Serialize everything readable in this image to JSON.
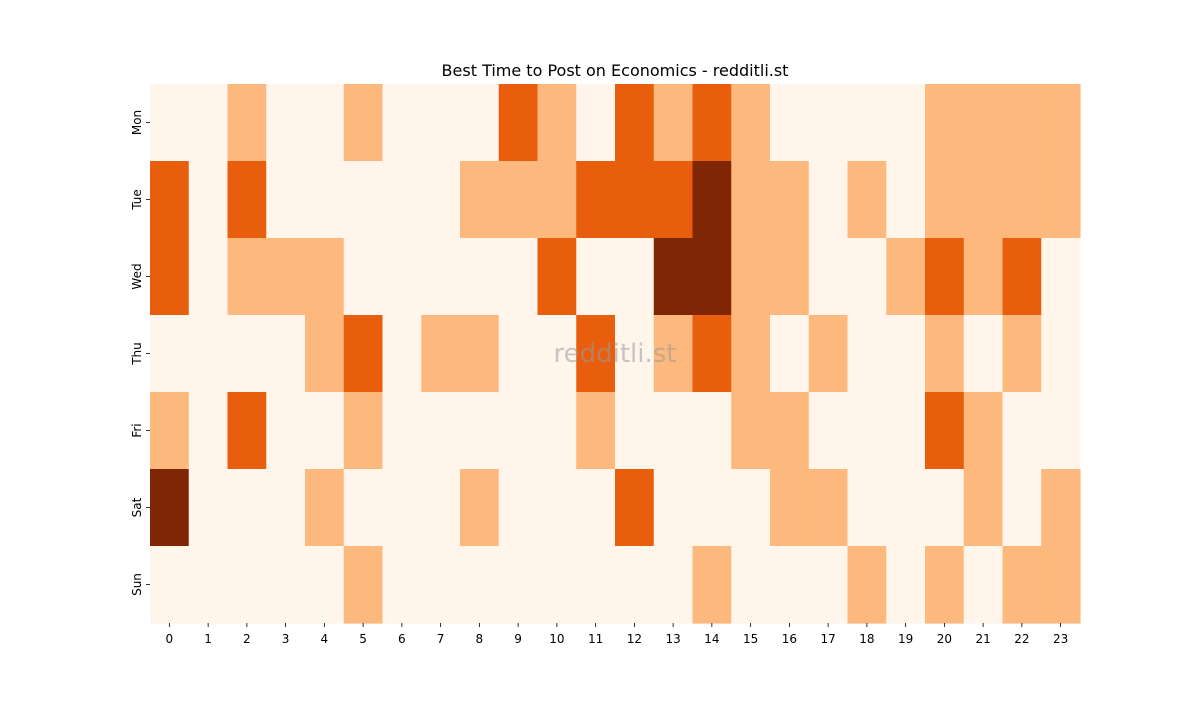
{
  "chart_data": {
    "type": "heatmap",
    "title": "Best Time to Post on Economics - redditli.st",
    "watermark": "redditli.st",
    "xlabel": "",
    "ylabel": "",
    "x_ticks": [
      "0",
      "1",
      "2",
      "3",
      "4",
      "5",
      "6",
      "7",
      "8",
      "9",
      "10",
      "11",
      "12",
      "13",
      "14",
      "15",
      "16",
      "17",
      "18",
      "19",
      "20",
      "21",
      "22",
      "23"
    ],
    "y_ticks": [
      "Mon",
      "Tue",
      "Wed",
      "Thu",
      "Fri",
      "Sat",
      "Sun"
    ],
    "values": [
      [
        0,
        0,
        1,
        0,
        0,
        1,
        0,
        0,
        0,
        2,
        1,
        0,
        2,
        1,
        2,
        1,
        0,
        0,
        0,
        0,
        1,
        1,
        1,
        1
      ],
      [
        2,
        0,
        2,
        0,
        0,
        0,
        0,
        0,
        1,
        1,
        1,
        2,
        2,
        2,
        3,
        1,
        1,
        0,
        1,
        0,
        1,
        1,
        1,
        1
      ],
      [
        2,
        0,
        1,
        1,
        1,
        0,
        0,
        0,
        0,
        0,
        2,
        0,
        0,
        3,
        3,
        1,
        1,
        0,
        0,
        1,
        2,
        1,
        2,
        0
      ],
      [
        0,
        0,
        0,
        0,
        1,
        2,
        0,
        1,
        1,
        0,
        0,
        2,
        0,
        1,
        2,
        1,
        0,
        1,
        0,
        0,
        1,
        0,
        1,
        0
      ],
      [
        1,
        0,
        2,
        0,
        0,
        1,
        0,
        0,
        0,
        0,
        0,
        1,
        0,
        0,
        0,
        1,
        1,
        0,
        0,
        0,
        2,
        1,
        0,
        0
      ],
      [
        3,
        0,
        0,
        0,
        1,
        0,
        0,
        0,
        1,
        0,
        0,
        0,
        2,
        0,
        0,
        0,
        1,
        1,
        0,
        0,
        0,
        1,
        0,
        1
      ],
      [
        0,
        0,
        0,
        0,
        0,
        1,
        0,
        0,
        0,
        0,
        0,
        0,
        0,
        0,
        1,
        0,
        0,
        0,
        1,
        0,
        1,
        0,
        1,
        1
      ]
    ],
    "colors": [
      "#fff5eb",
      "#fdb97d",
      "#e95e0d",
      "#7f2704"
    ],
    "grid": false,
    "legend": "none"
  }
}
